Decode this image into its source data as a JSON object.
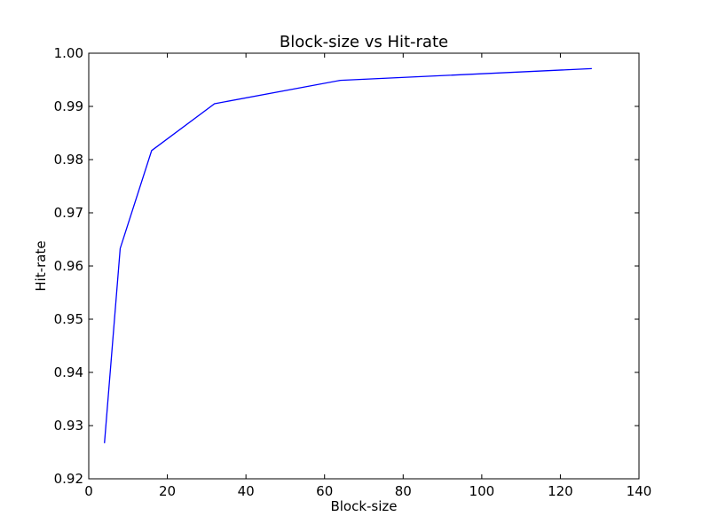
{
  "chart_data": {
    "type": "line",
    "title": "Block-size vs Hit-rate",
    "xlabel": "Block-size",
    "ylabel": "Hit-rate",
    "xlim": [
      0,
      140
    ],
    "ylim": [
      0.92,
      1.0
    ],
    "xticks": [
      0,
      20,
      40,
      60,
      80,
      100,
      120,
      140
    ],
    "xtick_labels": [
      "0",
      "20",
      "40",
      "60",
      "80",
      "100",
      "120",
      "140"
    ],
    "yticks": [
      0.92,
      0.93,
      0.94,
      0.95,
      0.96,
      0.97,
      0.98,
      0.99,
      1.0
    ],
    "ytick_labels": [
      "0.92",
      "0.93",
      "0.94",
      "0.95",
      "0.96",
      "0.97",
      "0.98",
      "0.99",
      "1.00"
    ],
    "grid": false,
    "series": [
      {
        "x": [
          4,
          8,
          16,
          32,
          64,
          128
        ],
        "y": [
          0.9267,
          0.9633,
          0.9817,
          0.9905,
          0.9949,
          0.9971
        ],
        "color": "#0000ff"
      }
    ]
  }
}
